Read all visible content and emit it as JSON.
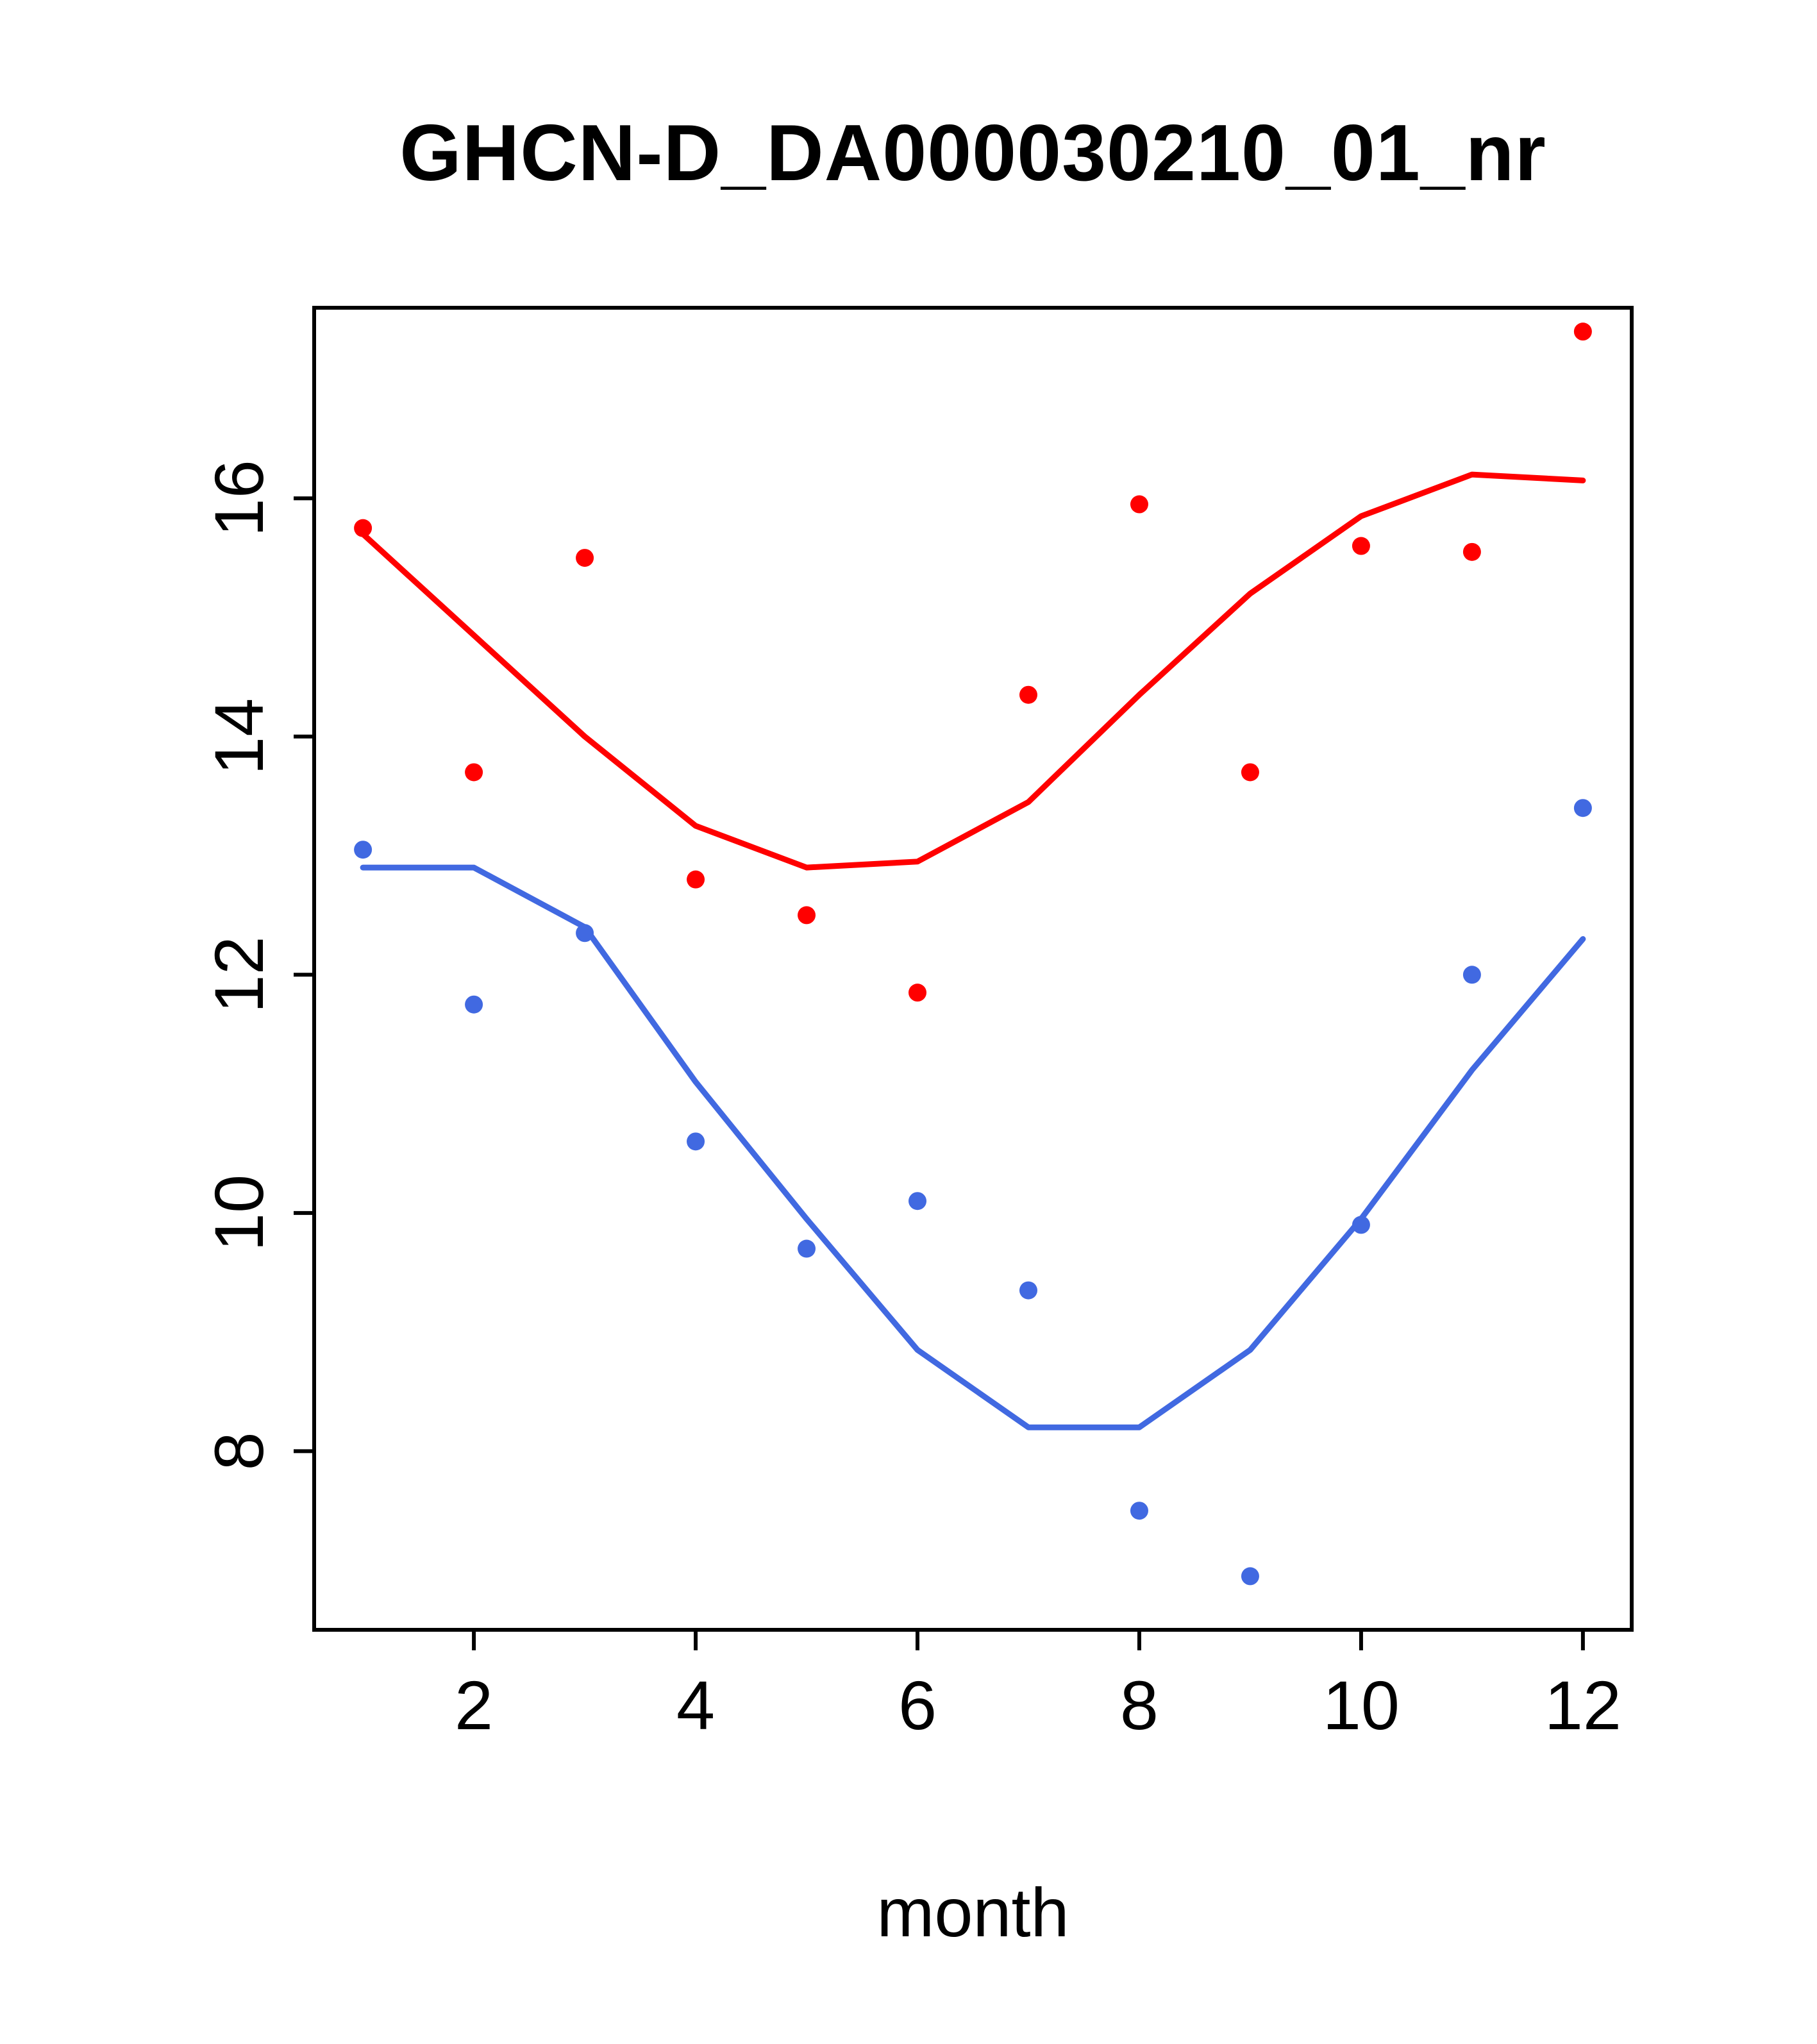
{
  "chart_data": {
    "type": "scatter",
    "title": "GHCN-D_DA000030210_01_nr",
    "xlabel": "month",
    "ylabel": "",
    "xlim": [
      0.56,
      12.44
    ],
    "ylim": [
      6.5,
      17.6
    ],
    "x_ticks": [
      2,
      4,
      6,
      8,
      10,
      12
    ],
    "y_ticks": [
      8,
      10,
      12,
      14,
      16
    ],
    "grid": false,
    "legend": "none",
    "colors": {
      "red": "#ff0000",
      "blue": "#4169e1"
    },
    "series": [
      {
        "name": "red-points",
        "type": "points",
        "color": "#ff0000",
        "x": [
          1,
          2,
          3,
          4,
          5,
          6,
          7,
          8,
          9,
          10,
          11,
          12
        ],
        "y": [
          15.75,
          13.7,
          15.5,
          12.8,
          12.5,
          11.85,
          14.35,
          15.95,
          13.7,
          15.6,
          15.55,
          17.4
        ]
      },
      {
        "name": "blue-points",
        "type": "points",
        "color": "#4169e1",
        "x": [
          1,
          2,
          3,
          4,
          5,
          6,
          7,
          8,
          9,
          10,
          11,
          12
        ],
        "y": [
          13.05,
          11.75,
          12.35,
          10.6,
          9.7,
          10.1,
          9.35,
          7.5,
          6.95,
          9.9,
          12.0,
          13.4
        ]
      },
      {
        "name": "red-smooth-line",
        "type": "line",
        "color": "#ff0000",
        "x": [
          1,
          2,
          3,
          4,
          5,
          6,
          7,
          8,
          9,
          10,
          11,
          12
        ],
        "y": [
          15.7,
          14.85,
          14.0,
          13.25,
          12.9,
          12.95,
          13.45,
          14.35,
          15.2,
          15.85,
          16.2,
          16.15
        ]
      },
      {
        "name": "blue-smooth-line",
        "type": "line",
        "color": "#4169e1",
        "x": [
          1,
          2,
          3,
          4,
          5,
          6,
          7,
          8,
          9,
          10,
          11,
          12
        ],
        "y": [
          12.9,
          12.9,
          12.4,
          11.1,
          9.95,
          8.85,
          8.2,
          8.2,
          8.85,
          9.95,
          11.2,
          12.3
        ]
      }
    ]
  }
}
